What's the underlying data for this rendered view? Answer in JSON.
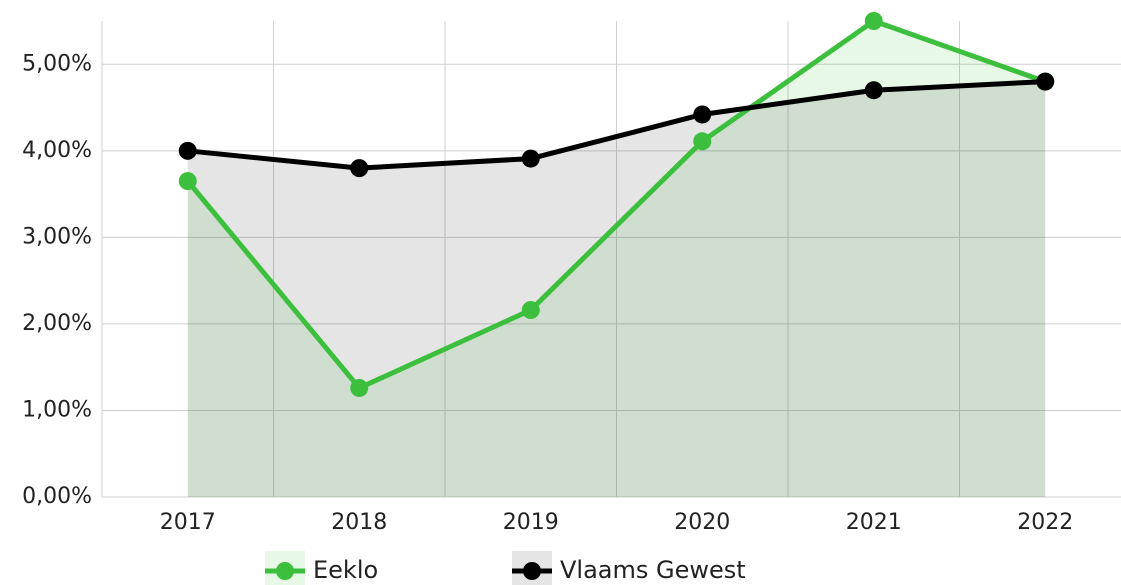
{
  "chart_data": {
    "type": "line",
    "categories": [
      "2017",
      "2018",
      "2019",
      "2020",
      "2021",
      "2022"
    ],
    "series": [
      {
        "name": "Eeklo",
        "color": "#3cbf3c",
        "values": [
          3.65,
          1.26,
          2.16,
          4.11,
          5.5,
          4.8
        ]
      },
      {
        "name": "Vlaams Gewest",
        "color": "#000000",
        "values": [
          4.0,
          3.8,
          3.91,
          4.42,
          4.7,
          4.8
        ]
      }
    ],
    "ylim": [
      0,
      5.5
    ],
    "yticks": [
      {
        "value": 0,
        "label": "0,00%"
      },
      {
        "value": 1,
        "label": "1,00%"
      },
      {
        "value": 2,
        "label": "2,00%"
      },
      {
        "value": 3,
        "label": "3,00%"
      },
      {
        "value": 4,
        "label": "4,00%"
      },
      {
        "value": 5,
        "label": "5,00%"
      }
    ],
    "grid": true,
    "area": true,
    "legend": "bottom"
  }
}
